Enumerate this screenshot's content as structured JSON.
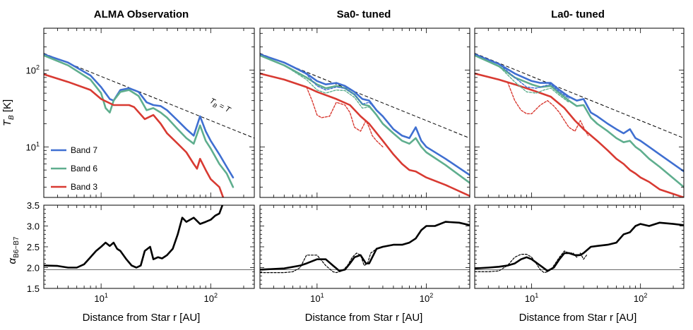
{
  "figure": {
    "ylabel_top": "T",
    "ylabel_top_sub": "B",
    "ylabel_top_unit": " [K]",
    "ylabel_bottom": "α",
    "ylabel_bottom_sub": "B6−B7",
    "xlabel": "Distance from Star  r [AU]",
    "annotation": "TB = T"
  },
  "chart_data": [
    {
      "type": "line",
      "title": "ALMA Observation",
      "x_scale": "log",
      "xlim": [
        3,
        250
      ],
      "y_scale": "log",
      "ylim": [
        2.2,
        350
      ],
      "xticks": [
        10,
        100
      ],
      "xtick_labels": [
        "10¹",
        "10²"
      ],
      "yticks": [
        10,
        100
      ],
      "ytick_labels": [
        "10¹",
        "10²"
      ],
      "legend": {
        "placement": "bottom-left",
        "entries": [
          "Band 7",
          "Band 6",
          "Band 3"
        ]
      },
      "reference_line": {
        "label": "TB = T",
        "x": [
          3,
          250
        ],
        "y": [
          165,
          13
        ]
      },
      "series": [
        {
          "name": "Band 7",
          "color": "#3f6fd1",
          "x": [
            3,
            5,
            8,
            10,
            12,
            13,
            15,
            18,
            22,
            26,
            30,
            35,
            40,
            50,
            60,
            70,
            80,
            90,
            100,
            120,
            140,
            160
          ],
          "y": [
            160,
            125,
            85,
            60,
            42,
            40,
            55,
            58,
            52,
            38,
            35,
            34,
            30,
            22,
            17,
            14,
            25,
            16,
            12,
            8,
            5.5,
            4
          ]
        },
        {
          "name": "Band 6",
          "color": "#5fae8e",
          "x": [
            3,
            5,
            8,
            10,
            11,
            12,
            13,
            15,
            18,
            22,
            26,
            30,
            35,
            40,
            50,
            60,
            70,
            80,
            90,
            100,
            120,
            140,
            160
          ],
          "y": [
            155,
            115,
            75,
            50,
            32,
            28,
            40,
            52,
            55,
            46,
            30,
            32,
            28,
            24,
            17,
            13,
            11,
            19,
            12,
            9.5,
            6,
            4.5,
            3
          ]
        },
        {
          "name": "Band 3",
          "color": "#d83a32",
          "x": [
            3,
            5,
            8,
            10,
            13,
            15,
            18,
            20,
            25,
            30,
            35,
            40,
            50,
            60,
            70,
            75,
            80,
            90,
            100,
            120,
            130
          ],
          "y": [
            88,
            70,
            55,
            42,
            35,
            35,
            35,
            33,
            23,
            26,
            20,
            15,
            11,
            8.5,
            6,
            5.2,
            7,
            5,
            3.8,
            3,
            2.2
          ]
        }
      ]
    },
    {
      "type": "line",
      "title": "Sa0- tuned",
      "x_scale": "log",
      "xlim": [
        3,
        250
      ],
      "y_scale": "log",
      "ylim": [
        2.2,
        350
      ],
      "xticks": [
        10,
        100
      ],
      "xtick_labels": [
        "10¹",
        "10²"
      ],
      "yticks": [
        10,
        100
      ],
      "reference_line": {
        "x": [
          3,
          250
        ],
        "y": [
          165,
          13
        ]
      },
      "series": [
        {
          "name": "Band 7",
          "color": "#3f6fd1",
          "x": [
            3,
            5,
            8,
            10,
            12,
            15,
            18,
            22,
            26,
            30,
            35,
            40,
            50,
            60,
            70,
            80,
            90,
            100,
            150,
            250
          ],
          "y": [
            160,
            125,
            90,
            72,
            65,
            68,
            62,
            52,
            42,
            40,
            30,
            25,
            17,
            14,
            13,
            18,
            12,
            10,
            7,
            4.3
          ]
        },
        {
          "name": "Band 6",
          "color": "#5fae8e",
          "x": [
            3,
            5,
            8,
            10,
            12,
            15,
            18,
            22,
            26,
            30,
            35,
            40,
            50,
            60,
            70,
            80,
            90,
            100,
            150,
            250
          ],
          "y": [
            155,
            115,
            80,
            65,
            58,
            62,
            58,
            48,
            36,
            34,
            26,
            20,
            15,
            12,
            11,
            13,
            10,
            8.5,
            5.8,
            3.4
          ]
        },
        {
          "name": "Band 3",
          "color": "#d83a32",
          "x": [
            3,
            5,
            8,
            10,
            15,
            20,
            25,
            30,
            40,
            50,
            60,
            70,
            80,
            100,
            150,
            250
          ],
          "y": [
            90,
            75,
            60,
            52,
            42,
            35,
            25,
            20,
            12,
            8,
            6,
            5,
            4.8,
            4,
            3.2,
            2.3
          ]
        },
        {
          "name": "Band 7",
          "color": "#3f6fd1",
          "style": "dashed",
          "x": [
            3,
            5,
            8,
            10,
            12,
            15,
            18,
            22,
            26,
            30,
            35
          ],
          "y": [
            160,
            125,
            88,
            62,
            55,
            60,
            58,
            48,
            36,
            38,
            30
          ]
        },
        {
          "name": "Band 6",
          "color": "#5fae8e",
          "style": "dashed",
          "x": [
            3,
            5,
            8,
            10,
            12,
            15,
            18,
            22,
            26,
            30,
            35
          ],
          "y": [
            155,
            115,
            75,
            55,
            50,
            55,
            54,
            44,
            32,
            33,
            26
          ]
        },
        {
          "name": "Band 3",
          "color": "#d83a32",
          "style": "dashed",
          "x": [
            8,
            9,
            10,
            11,
            13,
            15,
            18,
            20,
            22,
            25,
            28,
            30,
            32,
            35,
            40
          ],
          "y": [
            60,
            40,
            26,
            24,
            25,
            38,
            35,
            28,
            18,
            16,
            22,
            18,
            14,
            12,
            10
          ]
        }
      ]
    },
    {
      "type": "line",
      "title": "La0- tuned",
      "x_scale": "log",
      "xlim": [
        3,
        250
      ],
      "y_scale": "log",
      "ylim": [
        2.2,
        350
      ],
      "xticks": [
        10,
        100
      ],
      "xtick_labels": [
        "10¹",
        "10²"
      ],
      "yticks": [
        10,
        100
      ],
      "reference_line": {
        "x": [
          3,
          250
        ],
        "y": [
          165,
          13
        ]
      },
      "series": [
        {
          "name": "Band 7",
          "color": "#3f6fd1",
          "x": [
            3,
            5,
            7,
            10,
            12,
            15,
            18,
            22,
            26,
            30,
            35,
            40,
            50,
            60,
            70,
            80,
            90,
            100,
            120,
            150,
            250
          ],
          "y": [
            160,
            120,
            90,
            72,
            68,
            68,
            55,
            45,
            40,
            42,
            28,
            25,
            20,
            17,
            15,
            17,
            13,
            12,
            10,
            8,
            4.8
          ]
        },
        {
          "name": "Band 6",
          "color": "#5fae8e",
          "x": [
            3,
            5,
            7,
            10,
            12,
            15,
            18,
            22,
            26,
            30,
            35,
            40,
            50,
            60,
            70,
            80,
            90,
            100,
            120,
            150,
            250
          ],
          "y": [
            155,
            112,
            80,
            65,
            60,
            62,
            50,
            40,
            34,
            35,
            24,
            20,
            16,
            13,
            11.5,
            12,
            10,
            9,
            7,
            5.5,
            3
          ]
        },
        {
          "name": "Band 3",
          "color": "#d83a32",
          "x": [
            3,
            5,
            7,
            10,
            15,
            20,
            25,
            30,
            40,
            50,
            60,
            70,
            80,
            90,
            100,
            120,
            150,
            250
          ],
          "y": [
            90,
            75,
            65,
            55,
            45,
            32,
            22,
            17,
            12,
            9,
            7,
            6,
            5,
            4.5,
            4,
            3.5,
            2.8,
            2.2
          ]
        },
        {
          "name": "Band 7",
          "color": "#3f6fd1",
          "style": "dashed",
          "x": [
            3,
            5,
            7,
            9,
            11,
            13,
            15,
            18,
            22
          ],
          "y": [
            160,
            120,
            80,
            60,
            58,
            62,
            65,
            52,
            43
          ]
        },
        {
          "name": "Band 6",
          "color": "#5fae8e",
          "style": "dashed",
          "x": [
            3,
            5,
            7,
            9,
            11,
            13,
            15,
            18,
            22
          ],
          "y": [
            155,
            112,
            70,
            52,
            50,
            55,
            58,
            47,
            38
          ]
        },
        {
          "name": "Band 3",
          "color": "#d83a32",
          "style": "dashed",
          "x": [
            6,
            7,
            8,
            9,
            10,
            12,
            14,
            16,
            18,
            20,
            22,
            25,
            28,
            30,
            33
          ],
          "y": [
            70,
            40,
            30,
            27,
            27,
            35,
            40,
            34,
            28,
            22,
            18,
            16,
            22,
            18,
            14
          ]
        }
      ]
    },
    {
      "type": "line",
      "x_scale": "log",
      "xlim": [
        3,
        250
      ],
      "ylim": [
        1.5,
        3.5
      ],
      "xticks": [
        10,
        100
      ],
      "xtick_labels": [
        "10¹",
        "10²"
      ],
      "yticks": [
        1.5,
        2.0,
        2.5,
        3.0,
        3.5
      ],
      "ytick_labels": [
        "1.5",
        "2.0",
        "2.5",
        "3.0",
        "3.5"
      ],
      "hline": 1.95,
      "series": [
        {
          "x": [
            3,
            4,
            5,
            6,
            7,
            8,
            9,
            10,
            11,
            12,
            13,
            14,
            15,
            17,
            19,
            21,
            23,
            25,
            28,
            30,
            33,
            36,
            40,
            45,
            50,
            55,
            60,
            70,
            80,
            90,
            100,
            110,
            120,
            130
          ],
          "y": [
            2.05,
            2.04,
            2.0,
            2.0,
            2.08,
            2.25,
            2.4,
            2.5,
            2.6,
            2.52,
            2.6,
            2.45,
            2.4,
            2.2,
            2.05,
            2.0,
            2.05,
            2.4,
            2.5,
            2.2,
            2.25,
            2.22,
            2.3,
            2.45,
            2.8,
            3.2,
            3.1,
            3.2,
            3.05,
            3.1,
            3.15,
            3.25,
            3.3,
            3.55
          ]
        }
      ]
    },
    {
      "type": "line",
      "x_scale": "log",
      "xlim": [
        3,
        250
      ],
      "ylim": [
        1.5,
        3.5
      ],
      "xticks": [
        10,
        100
      ],
      "xtick_labels": [
        "10¹",
        "10²"
      ],
      "yticks": [
        1.5,
        2.0,
        2.5,
        3.0,
        3.5
      ],
      "hline": 1.95,
      "series": [
        {
          "x": [
            3,
            5,
            7,
            8,
            10,
            12,
            14,
            16,
            18,
            20,
            22,
            25,
            28,
            30,
            35,
            40,
            50,
            60,
            70,
            80,
            90,
            100,
            120,
            150,
            200,
            250
          ],
          "y": [
            1.95,
            1.98,
            2.05,
            2.1,
            2.2,
            2.2,
            2.05,
            1.92,
            1.95,
            2.1,
            2.25,
            2.3,
            2.1,
            2.1,
            2.45,
            2.5,
            2.55,
            2.55,
            2.6,
            2.7,
            2.9,
            3.0,
            3.0,
            3.1,
            3.08,
            3.02
          ]
        },
        {
          "style": "dashed",
          "x": [
            3,
            5,
            6,
            7,
            8,
            10,
            12,
            14,
            15,
            17,
            19,
            21,
            23,
            25,
            27,
            29,
            31,
            33,
            35
          ],
          "y": [
            1.88,
            1.88,
            1.9,
            2.0,
            2.3,
            2.3,
            2.05,
            1.9,
            1.88,
            1.92,
            2.05,
            2.25,
            2.35,
            2.3,
            2.05,
            2.1,
            2.35,
            2.4,
            2.45
          ]
        }
      ]
    },
    {
      "type": "line",
      "x_scale": "log",
      "xlim": [
        3,
        250
      ],
      "ylim": [
        1.5,
        3.5
      ],
      "xticks": [
        10,
        100
      ],
      "xtick_labels": [
        "10¹",
        "10²"
      ],
      "yticks": [
        1.5,
        2.0,
        2.5,
        3.0,
        3.5
      ],
      "hline": 1.95,
      "series": [
        {
          "x": [
            3,
            4,
            5,
            6,
            7,
            8,
            9,
            10,
            12,
            14,
            16,
            18,
            20,
            22,
            25,
            28,
            30,
            35,
            40,
            50,
            60,
            70,
            80,
            90,
            100,
            120,
            150,
            200,
            250
          ],
          "y": [
            1.98,
            2.0,
            2.02,
            2.05,
            2.1,
            2.2,
            2.25,
            2.2,
            2.05,
            1.92,
            2.0,
            2.2,
            2.35,
            2.35,
            2.3,
            2.3,
            2.35,
            2.5,
            2.52,
            2.55,
            2.6,
            2.8,
            2.85,
            3.0,
            3.05,
            3.0,
            3.08,
            3.05,
            3.02
          ]
        },
        {
          "style": "dashed",
          "x": [
            3,
            4,
            5,
            6,
            7,
            8,
            9,
            10,
            11,
            12,
            13,
            14,
            15,
            16,
            18,
            20,
            22,
            24,
            26,
            28,
            30,
            32
          ],
          "y": [
            1.9,
            1.9,
            1.92,
            2.05,
            2.25,
            2.32,
            2.32,
            2.25,
            2.1,
            1.95,
            1.88,
            1.9,
            1.95,
            2.05,
            2.25,
            2.4,
            2.35,
            2.35,
            2.25,
            2.35,
            2.2,
            2.3
          ]
        }
      ]
    }
  ]
}
